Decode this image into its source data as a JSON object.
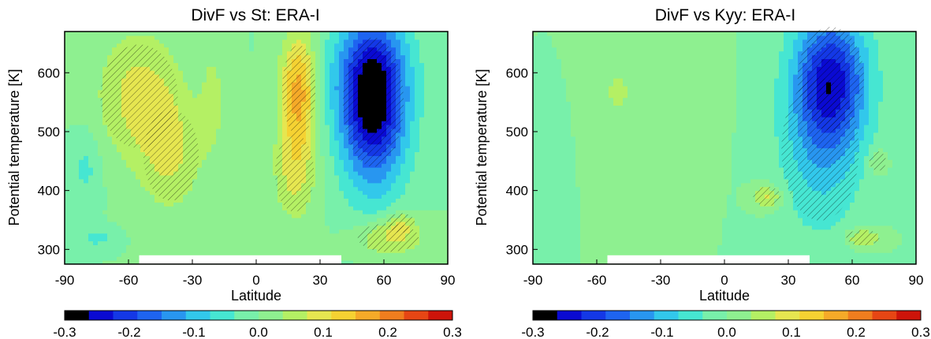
{
  "palette": [
    "#000000",
    "#0a0ad2",
    "#1438e6",
    "#1e64f0",
    "#2896f0",
    "#32c8eb",
    "#46e6d2",
    "#78f0aa",
    "#8ef090",
    "#b4f064",
    "#e6e650",
    "#f5d232",
    "#f5aa28",
    "#f07d1e",
    "#e64614",
    "#cd140a"
  ],
  "chart_data": [
    {
      "type": "heatmap",
      "title": "DivF vs St: ERA-I",
      "xlabel": "Latitude",
      "ylabel": "Potential temperature [K]",
      "x_ticks": [
        -90,
        -60,
        -30,
        0,
        30,
        60,
        90
      ],
      "y_ticks": [
        300,
        400,
        500,
        600
      ],
      "xlim": [
        -90,
        90
      ],
      "ylim": [
        275,
        670
      ],
      "colorbar": {
        "min": -0.3,
        "max": 0.3,
        "ticks": [
          "-0.3",
          "-0.2",
          "-0.1",
          "0.0",
          "0.1",
          "0.2",
          "0.3"
        ]
      },
      "background_value": 0.0,
      "features": [
        {
          "lat": -55,
          "theta": 560,
          "value": 0.09,
          "lat_w": 14,
          "theta_w": 80
        },
        {
          "lat": -40,
          "theta": 460,
          "value": 0.07,
          "lat_w": 10,
          "theta_w": 70
        },
        {
          "lat": -80,
          "theta": 440,
          "value": -0.05,
          "lat_w": 5,
          "theta_w": 45
        },
        {
          "lat": -75,
          "theta": 320,
          "value": -0.05,
          "lat_w": 6,
          "theta_w": 12
        },
        {
          "lat": -20,
          "theta": 560,
          "value": 0.04,
          "lat_w": 5,
          "theta_w": 90
        },
        {
          "lat": 20,
          "theta": 570,
          "value": 0.17,
          "lat_w": 6,
          "theta_w": 70
        },
        {
          "lat": 18,
          "theta": 430,
          "value": 0.08,
          "lat_w": 7,
          "theta_w": 60
        },
        {
          "lat": 55,
          "theta": 550,
          "value": -0.28,
          "lat_w": 11,
          "theta_w": 100
        },
        {
          "lat": 50,
          "theta": 600,
          "value": -0.05,
          "lat_w": 16,
          "theta_w": 70
        },
        {
          "lat": 62,
          "theta": 320,
          "value": 0.09,
          "lat_w": 11,
          "theta_w": 22
        },
        {
          "lat": 68,
          "theta": 345,
          "value": 0.06,
          "lat_w": 5,
          "theta_w": 15
        }
      ]
    },
    {
      "type": "heatmap",
      "title": "DivF vs Kyy: ERA-I",
      "xlabel": "Latitude",
      "ylabel": "Potential temperature [K]",
      "x_ticks": [
        -90,
        -60,
        -30,
        0,
        30,
        60,
        90
      ],
      "y_ticks": [
        300,
        400,
        500,
        600
      ],
      "xlim": [
        -90,
        90
      ],
      "ylim": [
        275,
        670
      ],
      "colorbar": {
        "min": -0.3,
        "max": 0.3,
        "ticks": [
          "-0.3",
          "-0.2",
          "-0.1",
          "0.0",
          "0.1",
          "0.2",
          "0.3"
        ]
      },
      "background_value": 0.0,
      "features": [
        {
          "lat": 50,
          "theta": 590,
          "value": -0.22,
          "lat_w": 12,
          "theta_w": 80
        },
        {
          "lat": 45,
          "theta": 470,
          "value": -0.08,
          "lat_w": 14,
          "theta_w": 110
        },
        {
          "lat": -80,
          "theta": 460,
          "value": -0.03,
          "lat_w": 4,
          "theta_w": 60
        },
        {
          "lat": -50,
          "theta": 570,
          "value": 0.04,
          "lat_w": 10,
          "theta_w": 70
        },
        {
          "lat": 20,
          "theta": 390,
          "value": 0.09,
          "lat_w": 5,
          "theta_w": 15
        },
        {
          "lat": 65,
          "theta": 320,
          "value": 0.08,
          "lat_w": 6,
          "theta_w": 12
        },
        {
          "lat": -10,
          "theta": 560,
          "value": 0.03,
          "lat_w": 6,
          "theta_w": 80
        },
        {
          "lat": 72,
          "theta": 450,
          "value": 0.06,
          "lat_w": 3,
          "theta_w": 15
        }
      ]
    }
  ]
}
